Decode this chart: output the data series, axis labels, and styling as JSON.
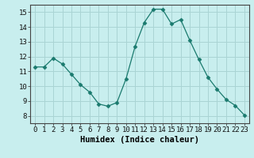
{
  "x": [
    0,
    1,
    2,
    3,
    4,
    5,
    6,
    7,
    8,
    9,
    10,
    11,
    12,
    13,
    14,
    15,
    16,
    17,
    18,
    19,
    20,
    21,
    22,
    23
  ],
  "y": [
    11.3,
    11.3,
    11.9,
    11.5,
    10.8,
    10.1,
    9.6,
    8.8,
    8.65,
    8.9,
    10.5,
    12.7,
    14.3,
    15.2,
    15.2,
    14.2,
    14.5,
    13.1,
    11.8,
    10.6,
    9.8,
    9.1,
    8.7,
    8.05
  ],
  "line_color": "#1a7a6e",
  "marker": "D",
  "marker_size": 2.5,
  "bg_color": "#c8eeee",
  "grid_color": "#aad4d4",
  "xlabel": "Humidex (Indice chaleur)",
  "ylim": [
    7.5,
    15.5
  ],
  "xlim": [
    -0.5,
    23.5
  ],
  "yticks": [
    8,
    9,
    10,
    11,
    12,
    13,
    14,
    15
  ],
  "xticks": [
    0,
    1,
    2,
    3,
    4,
    5,
    6,
    7,
    8,
    9,
    10,
    11,
    12,
    13,
    14,
    15,
    16,
    17,
    18,
    19,
    20,
    21,
    22,
    23
  ],
  "tick_label_fontsize": 6.5,
  "xlabel_fontsize": 7.5
}
